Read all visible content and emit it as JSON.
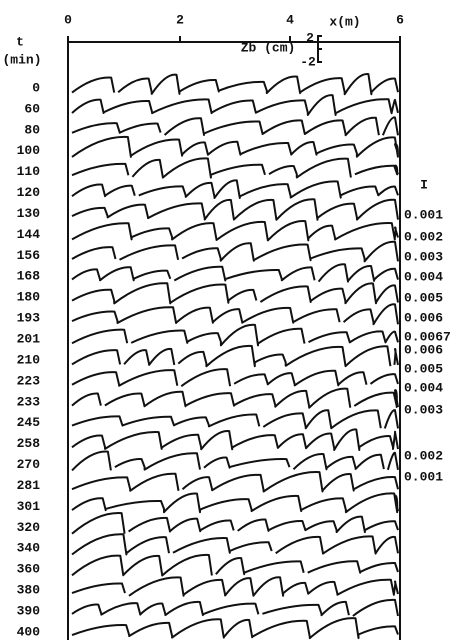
{
  "x_axis": {
    "ticks": [
      "0",
      "2",
      "4",
      "6"
    ],
    "label": "x(m)"
  },
  "t_axis": {
    "label": "t",
    "unit": "(min)",
    "times": [
      "0",
      "60",
      "80",
      "100",
      "110",
      "120",
      "130",
      "144",
      "156",
      "168",
      "180",
      "193",
      "201",
      "210",
      "223",
      "233",
      "245",
      "258",
      "270",
      "281",
      "301",
      "320",
      "340",
      "360",
      "380",
      "390",
      "400"
    ]
  },
  "scale": {
    "label": "Zb (cm)",
    "top": "2",
    "bottom": "-2"
  },
  "i_axis": {
    "label": "I",
    "values": [
      "0.001",
      "0.002",
      "0.003",
      "0.004",
      "0.005",
      "0.006",
      "0.0067",
      "0.006",
      "0.005",
      "0.004",
      "0.003",
      "0.002",
      "0.001"
    ]
  }
}
